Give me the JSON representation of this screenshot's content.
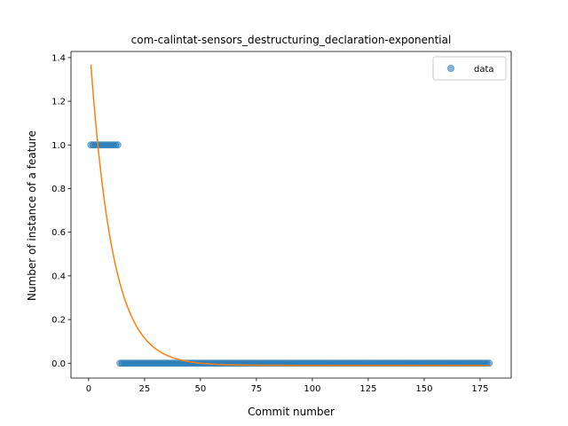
{
  "chart_data": {
    "type": "scatter",
    "title": "com-calintat-sensors_destructuring_declaration-exponential",
    "xlabel": "Commit number",
    "ylabel": "Number of instance of a feature",
    "xlim": [
      -7.9,
      188.9
    ],
    "ylim": [
      -0.068,
      1.428
    ],
    "xticks": [
      0,
      25,
      50,
      75,
      100,
      125,
      150,
      175
    ],
    "yticks": [
      0.0,
      0.2,
      0.4,
      0.6,
      0.8,
      1.0,
      1.2,
      1.4
    ],
    "xtick_labels": [
      "0",
      "25",
      "50",
      "75",
      "100",
      "125",
      "150",
      "175"
    ],
    "ytick_labels": [
      "0.0",
      "0.2",
      "0.4",
      "0.6",
      "0.8",
      "1.0",
      "1.2",
      "1.4"
    ],
    "grid": false,
    "legend": {
      "placement": "top-right",
      "entries": [
        "data"
      ]
    },
    "series": [
      {
        "name": "data",
        "kind": "scatter",
        "color": "#1f77b4",
        "segments": [
          {
            "x_start": 1,
            "x_end": 13,
            "y": 1
          },
          {
            "x_start": 14,
            "x_end": 179,
            "y": 0
          }
        ]
      },
      {
        "kind": "line",
        "color": "#ff7f0e",
        "curve": {
          "form": "a*exp(-b*x)+c",
          "a": 1.5228,
          "b": 0.1,
          "c": -0.01,
          "x_start": 1,
          "x_end": 179
        }
      }
    ]
  }
}
